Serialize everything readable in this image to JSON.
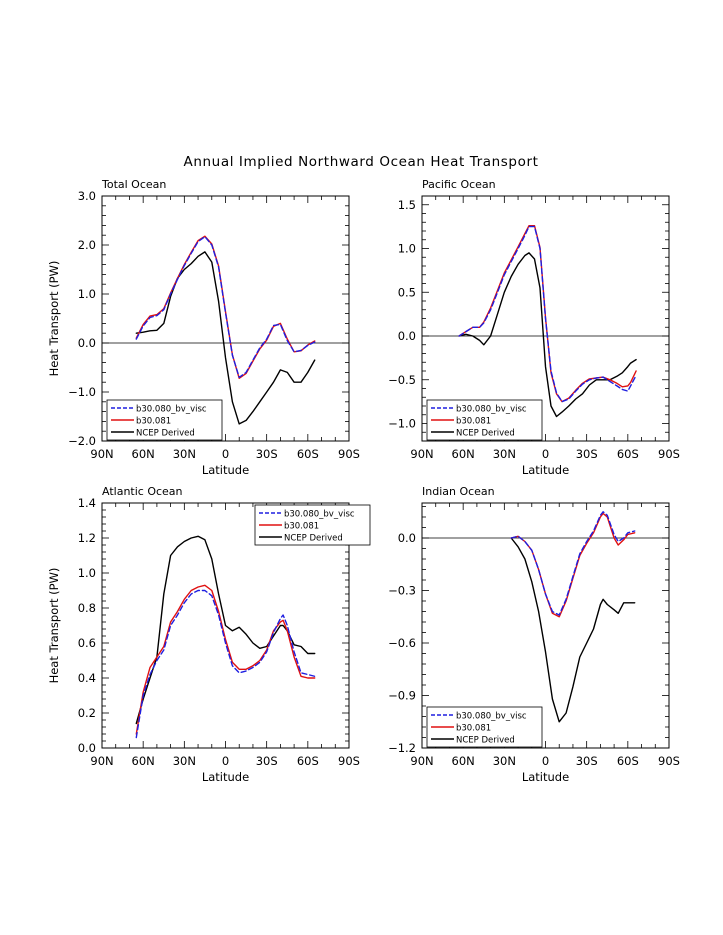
{
  "figure_title": "Annual Implied Northward Ocean Heat Transport",
  "series_styles": [
    {
      "name": "b30.080_bv_visc",
      "color": "#1f1fe0",
      "dash": "dashed"
    },
    {
      "name": "b30.081",
      "color": "#e01010",
      "dash": "solid"
    },
    {
      "name": "NCEP Derived",
      "color": "#000000",
      "dash": "solid"
    }
  ],
  "chart_data": [
    {
      "type": "line",
      "title": "Total Ocean",
      "xlabel": "Latitude",
      "ylabel": "Heat Transport (PW)",
      "xlim": [
        -90,
        90
      ],
      "ylim": [
        -2.0,
        3.0
      ],
      "x_ticks": [
        -90,
        -60,
        -30,
        0,
        30,
        60,
        90
      ],
      "x_tick_labels": [
        "90N",
        "60N",
        "30N",
        "0",
        "30S",
        "60S",
        "90S"
      ],
      "y_ticks": [
        -2.0,
        -1.0,
        0.0,
        1.0,
        2.0,
        3.0
      ],
      "y_tick_labels": [
        "−2.0",
        "−1.0",
        "0.0",
        "1.0",
        "2.0",
        "3.0"
      ],
      "zero_line": true,
      "legend": "bottom-left",
      "series": [
        {
          "name": "b30.080_bv_visc",
          "x": [
            -65,
            -60,
            -55,
            -50,
            -45,
            -40,
            -35,
            -30,
            -25,
            -20,
            -15,
            -10,
            -5,
            0,
            5,
            10,
            15,
            20,
            25,
            30,
            35,
            40,
            45,
            50,
            55,
            60,
            65
          ],
          "y": [
            0.08,
            0.35,
            0.52,
            0.56,
            0.68,
            1.0,
            1.3,
            1.58,
            1.83,
            2.07,
            2.17,
            2.0,
            1.55,
            0.62,
            -0.25,
            -0.7,
            -0.6,
            -0.35,
            -0.1,
            0.08,
            0.36,
            0.38,
            0.05,
            -0.18,
            -0.15,
            -0.05,
            0.02
          ]
        },
        {
          "name": "b30.081",
          "x": [
            -65,
            -60,
            -55,
            -50,
            -45,
            -40,
            -35,
            -30,
            -25,
            -20,
            -15,
            -10,
            -5,
            0,
            5,
            10,
            15,
            20,
            25,
            30,
            35,
            40,
            45,
            50,
            55,
            60,
            65
          ],
          "y": [
            0.1,
            0.38,
            0.55,
            0.58,
            0.7,
            1.02,
            1.32,
            1.6,
            1.85,
            2.09,
            2.18,
            2.02,
            1.57,
            0.64,
            -0.24,
            -0.72,
            -0.62,
            -0.37,
            -0.12,
            0.06,
            0.34,
            0.4,
            0.08,
            -0.18,
            -0.16,
            -0.04,
            0.04
          ]
        },
        {
          "name": "NCEP Derived",
          "x": [
            -65,
            -60,
            -55,
            -50,
            -45,
            -40,
            -35,
            -30,
            -25,
            -20,
            -15,
            -10,
            -5,
            0,
            5,
            10,
            15,
            20,
            25,
            30,
            35,
            40,
            45,
            50,
            55,
            60,
            65
          ],
          "y": [
            0.2,
            0.22,
            0.25,
            0.26,
            0.4,
            0.95,
            1.32,
            1.5,
            1.62,
            1.77,
            1.86,
            1.65,
            0.85,
            -0.3,
            -1.2,
            -1.65,
            -1.58,
            -1.4,
            -1.2,
            -1.0,
            -0.8,
            -0.55,
            -0.6,
            -0.8,
            -0.8,
            -0.6,
            -0.35
          ]
        }
      ]
    },
    {
      "type": "line",
      "title": "Pacific Ocean",
      "xlabel": "Latitude",
      "ylabel": "",
      "xlim": [
        -90,
        90
      ],
      "ylim": [
        -1.2,
        1.6
      ],
      "x_ticks": [
        -90,
        -60,
        -30,
        0,
        30,
        60,
        90
      ],
      "x_tick_labels": [
        "90N",
        "60N",
        "30N",
        "0",
        "30S",
        "60S",
        "90S"
      ],
      "y_ticks": [
        -1.0,
        -0.5,
        0.0,
        0.5,
        1.0,
        1.5
      ],
      "y_tick_labels": [
        "−1.0",
        "−0.5",
        "0.0",
        "0.5",
        "1.0",
        "1.5"
      ],
      "zero_line": true,
      "legend": "bottom-left",
      "series": [
        {
          "name": "b30.080_bv_visc",
          "x": [
            -63,
            -58,
            -53,
            -48,
            -45,
            -40,
            -35,
            -30,
            -25,
            -20,
            -15,
            -12,
            -8,
            -4,
            0,
            4,
            8,
            12,
            17,
            22,
            27,
            32,
            37,
            42,
            47,
            52,
            56,
            60,
            62,
            66
          ],
          "y": [
            0.0,
            0.05,
            0.1,
            0.1,
            0.15,
            0.3,
            0.5,
            0.7,
            0.85,
            1.0,
            1.15,
            1.25,
            1.25,
            1.0,
            0.2,
            -0.4,
            -0.65,
            -0.75,
            -0.72,
            -0.63,
            -0.55,
            -0.5,
            -0.48,
            -0.47,
            -0.52,
            -0.57,
            -0.61,
            -0.63,
            -0.57,
            -0.45
          ]
        },
        {
          "name": "b30.081",
          "x": [
            -63,
            -58,
            -53,
            -48,
            -45,
            -40,
            -35,
            -30,
            -25,
            -20,
            -15,
            -12,
            -8,
            -4,
            0,
            4,
            8,
            12,
            17,
            22,
            27,
            32,
            37,
            42,
            47,
            52,
            56,
            60,
            62,
            66
          ],
          "y": [
            0.0,
            0.05,
            0.1,
            0.1,
            0.16,
            0.32,
            0.52,
            0.72,
            0.87,
            1.02,
            1.17,
            1.26,
            1.26,
            1.01,
            0.21,
            -0.42,
            -0.66,
            -0.75,
            -0.71,
            -0.62,
            -0.54,
            -0.49,
            -0.48,
            -0.47,
            -0.5,
            -0.54,
            -0.58,
            -0.57,
            -0.53,
            -0.4
          ]
        },
        {
          "name": "NCEP Derived",
          "x": [
            -63,
            -58,
            -53,
            -48,
            -45,
            -40,
            -35,
            -30,
            -25,
            -20,
            -15,
            -12,
            -8,
            -4,
            0,
            4,
            8,
            12,
            17,
            22,
            27,
            32,
            37,
            42,
            47,
            52,
            56,
            60,
            62,
            66
          ],
          "y": [
            0.0,
            0.02,
            0.0,
            -0.05,
            -0.1,
            0.0,
            0.25,
            0.5,
            0.68,
            0.82,
            0.92,
            0.95,
            0.88,
            0.55,
            -0.35,
            -0.8,
            -0.92,
            -0.87,
            -0.8,
            -0.72,
            -0.66,
            -0.56,
            -0.5,
            -0.5,
            -0.5,
            -0.46,
            -0.42,
            -0.35,
            -0.31,
            -0.27
          ]
        }
      ]
    },
    {
      "type": "line",
      "title": "Atlantic Ocean",
      "xlabel": "Latitude",
      "ylabel": "Heat Transport (PW)",
      "xlim": [
        -90,
        90
      ],
      "ylim": [
        0.0,
        1.4
      ],
      "x_ticks": [
        -90,
        -60,
        -30,
        0,
        30,
        60,
        90
      ],
      "x_tick_labels": [
        "90N",
        "60N",
        "30N",
        "0",
        "30S",
        "60S",
        "90S"
      ],
      "y_ticks": [
        0.0,
        0.2,
        0.4,
        0.6,
        0.8,
        1.0,
        1.2,
        1.4
      ],
      "y_tick_labels": [
        "0.0",
        "0.2",
        "0.4",
        "0.6",
        "0.8",
        "1.0",
        "1.2",
        "1.4"
      ],
      "zero_line": false,
      "legend": "top-right",
      "series": [
        {
          "name": "b30.080_bv_visc",
          "x": [
            -65,
            -60,
            -55,
            -50,
            -45,
            -40,
            -35,
            -30,
            -25,
            -20,
            -15,
            -10,
            -5,
            0,
            5,
            10,
            15,
            20,
            25,
            30,
            35,
            40,
            42,
            45,
            50,
            55,
            60,
            65
          ],
          "y": [
            0.06,
            0.3,
            0.42,
            0.5,
            0.56,
            0.7,
            0.76,
            0.83,
            0.88,
            0.9,
            0.9,
            0.87,
            0.76,
            0.6,
            0.47,
            0.43,
            0.44,
            0.46,
            0.49,
            0.55,
            0.66,
            0.74,
            0.76,
            0.7,
            0.55,
            0.43,
            0.42,
            0.41
          ]
        },
        {
          "name": "b30.081",
          "x": [
            -65,
            -60,
            -55,
            -50,
            -45,
            -40,
            -35,
            -30,
            -25,
            -20,
            -15,
            -10,
            -5,
            0,
            5,
            10,
            15,
            20,
            25,
            30,
            35,
            40,
            42,
            45,
            50,
            55,
            60,
            65
          ],
          "y": [
            0.08,
            0.32,
            0.46,
            0.52,
            0.58,
            0.72,
            0.78,
            0.85,
            0.9,
            0.92,
            0.93,
            0.9,
            0.78,
            0.62,
            0.49,
            0.45,
            0.45,
            0.47,
            0.5,
            0.56,
            0.67,
            0.72,
            0.73,
            0.67,
            0.52,
            0.41,
            0.4,
            0.4
          ]
        },
        {
          "name": "NCEP Derived",
          "x": [
            -65,
            -60,
            -55,
            -50,
            -45,
            -40,
            -35,
            -30,
            -25,
            -20,
            -15,
            -10,
            -5,
            0,
            5,
            10,
            15,
            20,
            25,
            30,
            35,
            40,
            42,
            45,
            50,
            55,
            60,
            65
          ],
          "y": [
            0.14,
            0.28,
            0.4,
            0.52,
            0.88,
            1.1,
            1.15,
            1.18,
            1.2,
            1.21,
            1.19,
            1.08,
            0.88,
            0.7,
            0.67,
            0.69,
            0.65,
            0.6,
            0.57,
            0.58,
            0.64,
            0.7,
            0.7,
            0.67,
            0.59,
            0.58,
            0.54,
            0.54
          ]
        }
      ]
    },
    {
      "type": "line",
      "title": "Indian Ocean",
      "xlabel": "Latitude",
      "ylabel": "",
      "xlim": [
        -90,
        90
      ],
      "ylim": [
        -1.2,
        0.2
      ],
      "x_ticks": [
        -90,
        -60,
        -30,
        0,
        30,
        60,
        90
      ],
      "x_tick_labels": [
        "90N",
        "60N",
        "30N",
        "0",
        "30S",
        "60S",
        "90S"
      ],
      "y_ticks": [
        -1.2,
        -0.9,
        -0.6,
        -0.3,
        0.0
      ],
      "y_tick_labels": [
        "−1.2",
        "−0.9",
        "−0.6",
        "−0.3",
        "0.0"
      ],
      "zero_line": true,
      "legend": "bottom-left",
      "series": [
        {
          "name": "b30.080_bv_visc",
          "x": [
            -25,
            -20,
            -15,
            -10,
            -5,
            0,
            5,
            10,
            15,
            20,
            25,
            30,
            35,
            40,
            42,
            45,
            50,
            53,
            57,
            60,
            65
          ],
          "y": [
            0.0,
            0.01,
            -0.02,
            -0.07,
            -0.18,
            -0.32,
            -0.42,
            -0.44,
            -0.35,
            -0.22,
            -0.09,
            -0.02,
            0.04,
            0.13,
            0.15,
            0.13,
            0.02,
            -0.02,
            0.0,
            0.03,
            0.04
          ]
        },
        {
          "name": "b30.081",
          "x": [
            -25,
            -20,
            -15,
            -10,
            -5,
            0,
            5,
            10,
            15,
            20,
            25,
            30,
            35,
            40,
            42,
            45,
            50,
            53,
            57,
            60,
            65
          ],
          "y": [
            0.0,
            0.01,
            -0.02,
            -0.07,
            -0.18,
            -0.32,
            -0.43,
            -0.45,
            -0.36,
            -0.23,
            -0.1,
            -0.03,
            0.03,
            0.12,
            0.14,
            0.12,
            0.0,
            -0.04,
            -0.01,
            0.02,
            0.03
          ]
        },
        {
          "name": "NCEP Derived",
          "x": [
            -25,
            -20,
            -15,
            -10,
            -5,
            0,
            5,
            10,
            15,
            20,
            25,
            30,
            35,
            40,
            42,
            45,
            50,
            53,
            57,
            60,
            65
          ],
          "y": [
            0.0,
            -0.05,
            -0.12,
            -0.25,
            -0.42,
            -0.65,
            -0.92,
            -1.05,
            -1.0,
            -0.85,
            -0.68,
            -0.6,
            -0.52,
            -0.38,
            -0.35,
            -0.38,
            -0.41,
            -0.43,
            -0.37,
            -0.37,
            -0.37
          ]
        }
      ]
    }
  ]
}
